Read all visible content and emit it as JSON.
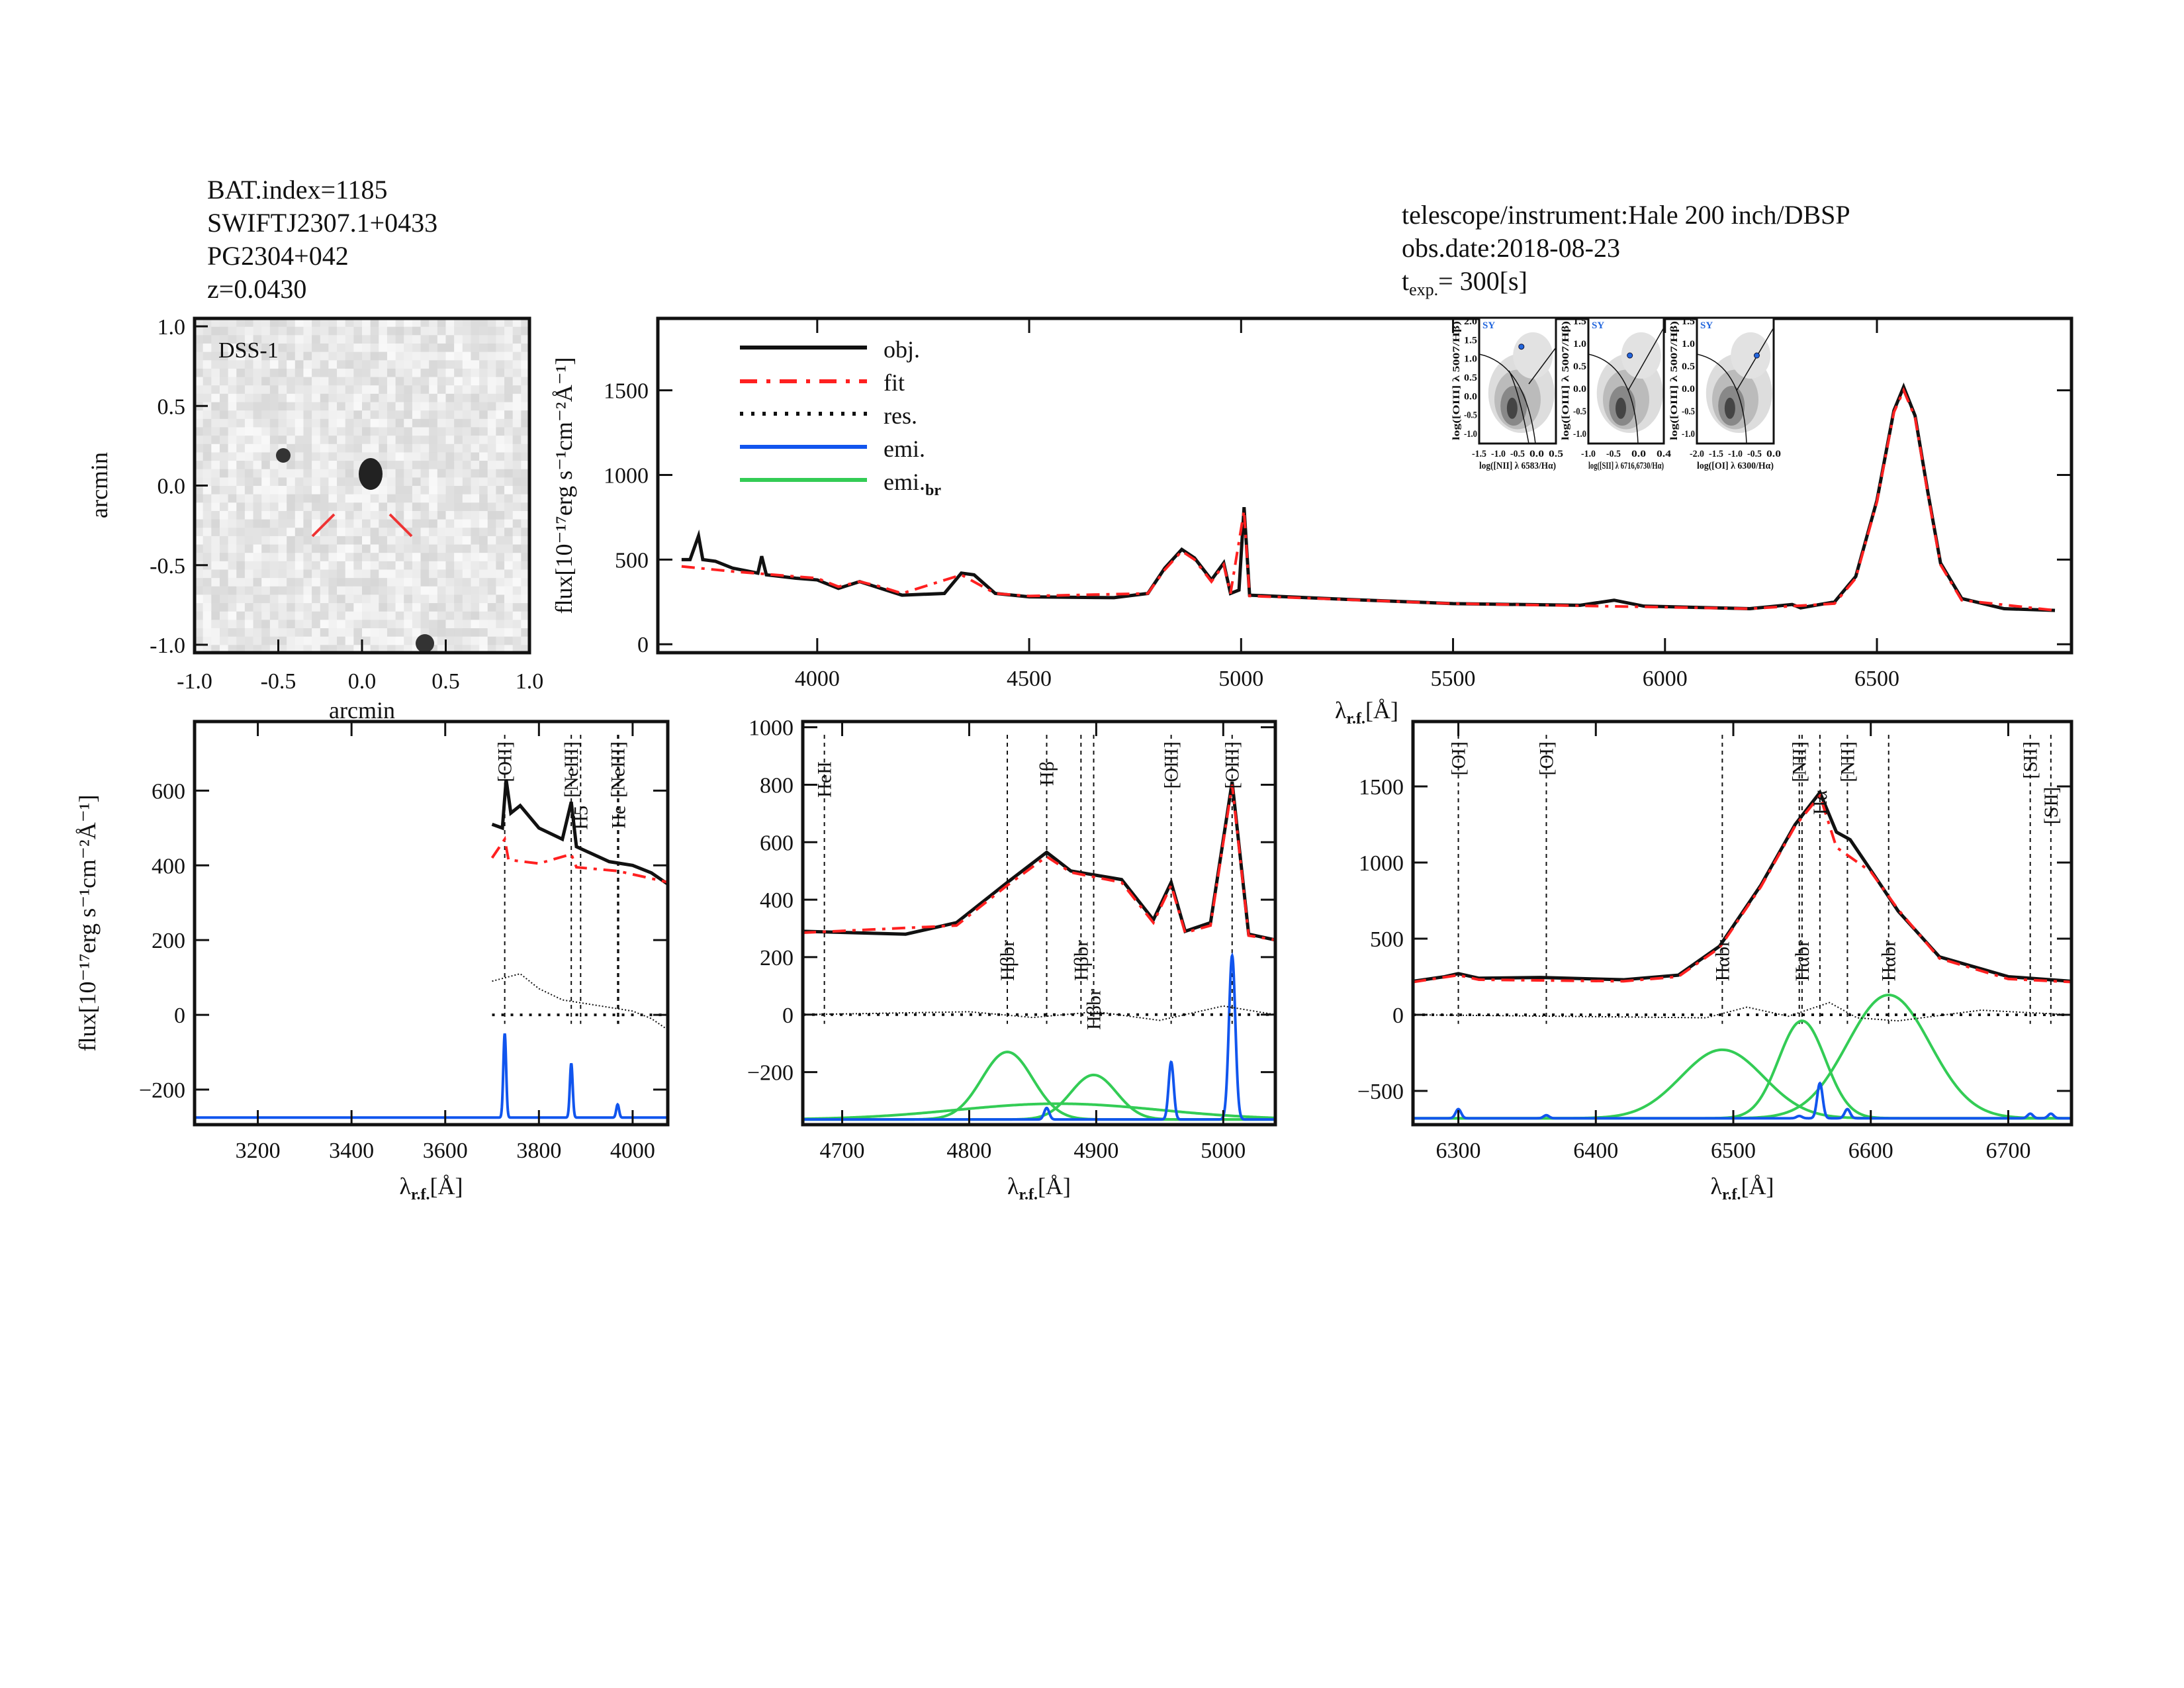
{
  "header_left": [
    "BAT.index=1185",
    "SWIFTJ2307.1+0433",
    "PG2304+042",
    "z=0.0430"
  ],
  "header_right": [
    "telescope/instrument:Hale 200 inch/DBSP",
    "obs.date:2018-08-23",
    "t",
    "exp.",
    "= 300[s]"
  ],
  "colors": {
    "obj": "#111111",
    "fit": "#ff2020",
    "res": "#111111",
    "emi": "#1155ee",
    "emi_br": "#33cc55",
    "bpt_point": "#2266dd"
  },
  "image_panel": {
    "label": "DSS-1",
    "xlabel": "arcmin",
    "ylabel": "arcmin",
    "xticks": [
      "-1.0",
      "-0.5",
      "0.0",
      "0.5",
      "1.0"
    ],
    "yticks": [
      "1.0",
      "0.5",
      "0.0",
      "-0.5",
      "-1.0"
    ]
  },
  "legend": [
    "obj.",
    "fit",
    "res.",
    "emi.",
    "emi.",
    "br"
  ],
  "ylabel": "flux[10⁻¹⁷erg s⁻¹cm⁻²Å⁻¹]",
  "xlabel": "λ",
  "xlabel_sub": "r.f.",
  "xlabel_unit": "[Å]",
  "bpt": [
    {
      "tag": "SY",
      "ylabel": "log([OIII] λ 5007/Hβ)",
      "xlabel": "log([NII] λ 6583/Hα)",
      "xticks": [
        "-1.5",
        "-1.0",
        "-0.5",
        "0.0",
        "0.5"
      ],
      "yticks": [
        "2.0",
        "1.5",
        "1.0",
        "0.5",
        "0.0",
        "-0.5",
        "-1.0"
      ],
      "point": [
        -0.42,
        1.0
      ]
    },
    {
      "tag": "SY",
      "ylabel": "log([OIII] λ 5007/Hβ)",
      "xlabel": "log([SII] λ 6716,6730/Hα)",
      "xticks": [
        "-1.0",
        "-0.5",
        "0.0",
        "0.4"
      ],
      "yticks": [
        "1.5",
        "1.0",
        "0.5",
        "0.0",
        "-0.5",
        "-1.0"
      ],
      "point": [
        -0.35,
        1.0
      ]
    },
    {
      "tag": "SY",
      "ylabel": "log([OIII] λ 5007/Hβ)",
      "xlabel": "log([OI] λ 6300/Hα)",
      "xticks": [
        "-2.0",
        "-1.5",
        "-1.0",
        "-0.5",
        "0.0"
      ],
      "yticks": [
        "1.5",
        "1.0",
        "0.5",
        "0.0",
        "-0.5",
        "-1.0"
      ],
      "point": [
        -0.5,
        1.0
      ]
    }
  ],
  "chart_data": [
    {
      "type": "line",
      "name": "full-spectrum",
      "xlim": [
        3624,
        6959
      ],
      "ylim": [
        -50,
        1925
      ],
      "xticks": [
        4000,
        4500,
        5000,
        5500,
        6000,
        6500
      ],
      "yticks": [
        0,
        500,
        1000,
        1500
      ],
      "obj": [
        [
          3680,
          500
        ],
        [
          3700,
          500
        ],
        [
          3720,
          640
        ],
        [
          3730,
          500
        ],
        [
          3760,
          490
        ],
        [
          3800,
          450
        ],
        [
          3860,
          420
        ],
        [
          3869,
          520
        ],
        [
          3880,
          410
        ],
        [
          3950,
          390
        ],
        [
          4000,
          380
        ],
        [
          4050,
          330
        ],
        [
          4100,
          370
        ],
        [
          4150,
          330
        ],
        [
          4200,
          290
        ],
        [
          4300,
          300
        ],
        [
          4340,
          420
        ],
        [
          4370,
          410
        ],
        [
          4420,
          300
        ],
        [
          4500,
          280
        ],
        [
          4700,
          275
        ],
        [
          4780,
          300
        ],
        [
          4820,
          450
        ],
        [
          4860,
          560
        ],
        [
          4890,
          510
        ],
        [
          4930,
          380
        ],
        [
          4959,
          480
        ],
        [
          4975,
          300
        ],
        [
          4995,
          320
        ],
        [
          5007,
          810
        ],
        [
          5020,
          290
        ],
        [
          5200,
          270
        ],
        [
          5500,
          240
        ],
        [
          5800,
          230
        ],
        [
          5880,
          260
        ],
        [
          5950,
          225
        ],
        [
          6200,
          210
        ],
        [
          6300,
          235
        ],
        [
          6320,
          215
        ],
        [
          6400,
          250
        ],
        [
          6450,
          400
        ],
        [
          6500,
          850
        ],
        [
          6540,
          1380
        ],
        [
          6563,
          1520
        ],
        [
          6590,
          1350
        ],
        [
          6620,
          900
        ],
        [
          6650,
          480
        ],
        [
          6700,
          270
        ],
        [
          6800,
          210
        ],
        [
          6920,
          200
        ]
      ],
      "fit": [
        [
          3680,
          460
        ],
        [
          3720,
          450
        ],
        [
          3800,
          430
        ],
        [
          3900,
          410
        ],
        [
          4000,
          390
        ],
        [
          4050,
          340
        ],
        [
          4100,
          370
        ],
        [
          4150,
          340
        ],
        [
          4200,
          300
        ],
        [
          4340,
          410
        ],
        [
          4420,
          300
        ],
        [
          4500,
          285
        ],
        [
          4780,
          300
        ],
        [
          4820,
          440
        ],
        [
          4860,
          550
        ],
        [
          4890,
          500
        ],
        [
          4930,
          370
        ],
        [
          4959,
          470
        ],
        [
          4975,
          300
        ],
        [
          5007,
          790
        ],
        [
          5020,
          285
        ],
        [
          5500,
          240
        ],
        [
          6200,
          210
        ],
        [
          6400,
          240
        ],
        [
          6450,
          390
        ],
        [
          6500,
          840
        ],
        [
          6540,
          1370
        ],
        [
          6563,
          1500
        ],
        [
          6590,
          1340
        ],
        [
          6620,
          890
        ],
        [
          6650,
          470
        ],
        [
          6700,
          260
        ],
        [
          6920,
          200
        ]
      ]
    },
    {
      "type": "line",
      "name": "oii-region",
      "xlim": [
        3065,
        4075
      ],
      "ylim": [
        -294,
        785
      ],
      "xticks": [
        3200,
        3400,
        3600,
        3800,
        4000
      ],
      "yticks": [
        -200,
        0,
        200,
        400,
        600
      ],
      "obj": [
        [
          3700,
          510
        ],
        [
          3722,
          500
        ],
        [
          3730,
          630
        ],
        [
          3740,
          540
        ],
        [
          3760,
          560
        ],
        [
          3800,
          500
        ],
        [
          3850,
          470
        ],
        [
          3869,
          570
        ],
        [
          3880,
          450
        ],
        [
          3950,
          410
        ],
        [
          4000,
          400
        ],
        [
          4040,
          380
        ],
        [
          4075,
          350
        ]
      ],
      "fit": [
        [
          3700,
          420
        ],
        [
          3727,
          470
        ],
        [
          3735,
          415
        ],
        [
          3800,
          405
        ],
        [
          3869,
          430
        ],
        [
          3880,
          395
        ],
        [
          3968,
          385
        ],
        [
          4075,
          355
        ]
      ],
      "res": [
        [
          3700,
          90
        ],
        [
          3760,
          110
        ],
        [
          3800,
          70
        ],
        [
          3850,
          40
        ],
        [
          3900,
          30
        ],
        [
          3950,
          20
        ],
        [
          4000,
          10
        ],
        [
          4040,
          -10
        ],
        [
          4075,
          -40
        ]
      ],
      "emi_base": -275,
      "emi": [
        [
          3727,
          225,
          3
        ],
        [
          3869,
          145,
          3
        ],
        [
          3968,
          35,
          3
        ]
      ],
      "emi_br": [],
      "lines": [
        {
          "x": 3727,
          "t": "[OII]",
          "c": "k"
        },
        {
          "x": 3869,
          "t": "[NeIII]",
          "c": "k"
        },
        {
          "x": 3889,
          "t": "H5",
          "c": "r"
        },
        {
          "x": 3968,
          "t": "[NeIII]",
          "c": "k"
        },
        {
          "x": 3970,
          "t": "He",
          "c": "r"
        }
      ]
    },
    {
      "type": "line",
      "name": "hbeta-region",
      "xlim": [
        4669,
        5041
      ],
      "ylim": [
        -383,
        1020
      ],
      "xticks": [
        4700,
        4800,
        4900,
        5000
      ],
      "yticks": [
        -200,
        0,
        200,
        400,
        600,
        800,
        1000
      ],
      "obj": [
        [
          4669,
          290
        ],
        [
          4750,
          280
        ],
        [
          4790,
          320
        ],
        [
          4830,
          460
        ],
        [
          4861,
          565
        ],
        [
          4880,
          500
        ],
        [
          4920,
          470
        ],
        [
          4945,
          330
        ],
        [
          4959,
          460
        ],
        [
          4970,
          290
        ],
        [
          4990,
          320
        ],
        [
          5007,
          810
        ],
        [
          5020,
          280
        ],
        [
          5041,
          260
        ]
      ],
      "fit": [
        [
          4669,
          285
        ],
        [
          4790,
          310
        ],
        [
          4830,
          450
        ],
        [
          4861,
          550
        ],
        [
          4880,
          495
        ],
        [
          4920,
          460
        ],
        [
          4945,
          320
        ],
        [
          4959,
          450
        ],
        [
          4970,
          285
        ],
        [
          4990,
          310
        ],
        [
          5007,
          800
        ],
        [
          5020,
          275
        ],
        [
          5041,
          260
        ]
      ],
      "res": [
        [
          4669,
          0
        ],
        [
          4800,
          10
        ],
        [
          4850,
          -10
        ],
        [
          4900,
          10
        ],
        [
          4950,
          -20
        ],
        [
          5000,
          30
        ],
        [
          5041,
          0
        ]
      ],
      "emi_base": -365,
      "emi": [
        [
          4861,
          40,
          2
        ],
        [
          4959,
          200,
          2
        ],
        [
          5007,
          570,
          2.5
        ]
      ],
      "emi_br": [
        [
          4830,
          235,
          20
        ],
        [
          4898,
          155,
          18
        ],
        [
          4870,
          55,
          80
        ]
      ],
      "lines": [
        {
          "x": 4686,
          "t": "HeII",
          "c": "r"
        },
        {
          "x": 4830,
          "t": "Hβbr",
          "c": "k"
        },
        {
          "x": 4861,
          "t": "Hβ",
          "c": "k"
        },
        {
          "x": 4888,
          "t": "Hβbr",
          "c": "k"
        },
        {
          "x": 4898,
          "t": "Hβbr",
          "c": "k"
        },
        {
          "x": 4959,
          "t": "[OIII]",
          "c": "k"
        },
        {
          "x": 5007,
          "t": "[OIII]",
          "c": "k"
        }
      ]
    },
    {
      "type": "line",
      "name": "halpha-region",
      "xlim": [
        6267,
        6746
      ],
      "ylim": [
        -722,
        1926
      ],
      "xticks": [
        6300,
        6400,
        6500,
        6600,
        6700
      ],
      "yticks": [
        -500,
        0,
        500,
        1000,
        1500
      ],
      "obj": [
        [
          6267,
          220
        ],
        [
          6290,
          250
        ],
        [
          6300,
          270
        ],
        [
          6315,
          240
        ],
        [
          6360,
          245
        ],
        [
          6420,
          230
        ],
        [
          6460,
          260
        ],
        [
          6490,
          450
        ],
        [
          6520,
          850
        ],
        [
          6545,
          1250
        ],
        [
          6563,
          1460
        ],
        [
          6575,
          1200
        ],
        [
          6585,
          1150
        ],
        [
          6600,
          950
        ],
        [
          6620,
          680
        ],
        [
          6650,
          380
        ],
        [
          6700,
          250
        ],
        [
          6746,
          220
        ]
      ],
      "fit": [
        [
          6267,
          215
        ],
        [
          6300,
          260
        ],
        [
          6315,
          230
        ],
        [
          6420,
          220
        ],
        [
          6460,
          250
        ],
        [
          6490,
          440
        ],
        [
          6520,
          840
        ],
        [
          6545,
          1240
        ],
        [
          6563,
          1440
        ],
        [
          6575,
          1100
        ],
        [
          6600,
          940
        ],
        [
          6620,
          690
        ],
        [
          6650,
          370
        ],
        [
          6700,
          235
        ],
        [
          6746,
          215
        ]
      ],
      "res": [
        [
          6267,
          0
        ],
        [
          6480,
          -20
        ],
        [
          6510,
          50
        ],
        [
          6540,
          -10
        ],
        [
          6570,
          80
        ],
        [
          6590,
          -20
        ],
        [
          6620,
          -40
        ],
        [
          6680,
          30
        ],
        [
          6746,
          0
        ]
      ],
      "emi_base": -680,
      "emi": [
        [
          6300,
          60,
          2
        ],
        [
          6364,
          20,
          2
        ],
        [
          6548,
          15,
          2
        ],
        [
          6563,
          230,
          2
        ],
        [
          6583,
          60,
          2
        ],
        [
          6716,
          30,
          2
        ],
        [
          6731,
          30,
          2
        ]
      ],
      "emi_br": [
        [
          6492,
          450,
          30
        ],
        [
          6550,
          640,
          17
        ],
        [
          6613,
          810,
          30
        ]
      ],
      "lines": [
        {
          "x": 6300,
          "t": "[OI]",
          "c": "k"
        },
        {
          "x": 6364,
          "t": "[OI]",
          "c": "k"
        },
        {
          "x": 6492,
          "t": "Hαbr",
          "c": "k"
        },
        {
          "x": 6548,
          "t": "[NII]",
          "c": "k"
        },
        {
          "x": 6550,
          "t": "Hαbr",
          "c": "k"
        },
        {
          "x": 6563,
          "t": "Hα",
          "c": "k"
        },
        {
          "x": 6583,
          "t": "[NII]",
          "c": "k"
        },
        {
          "x": 6613,
          "t": "Hαbr",
          "c": "k"
        },
        {
          "x": 6716,
          "t": "[SII]",
          "c": "k"
        },
        {
          "x": 6731,
          "t": "[SII]",
          "c": "k"
        }
      ]
    }
  ]
}
